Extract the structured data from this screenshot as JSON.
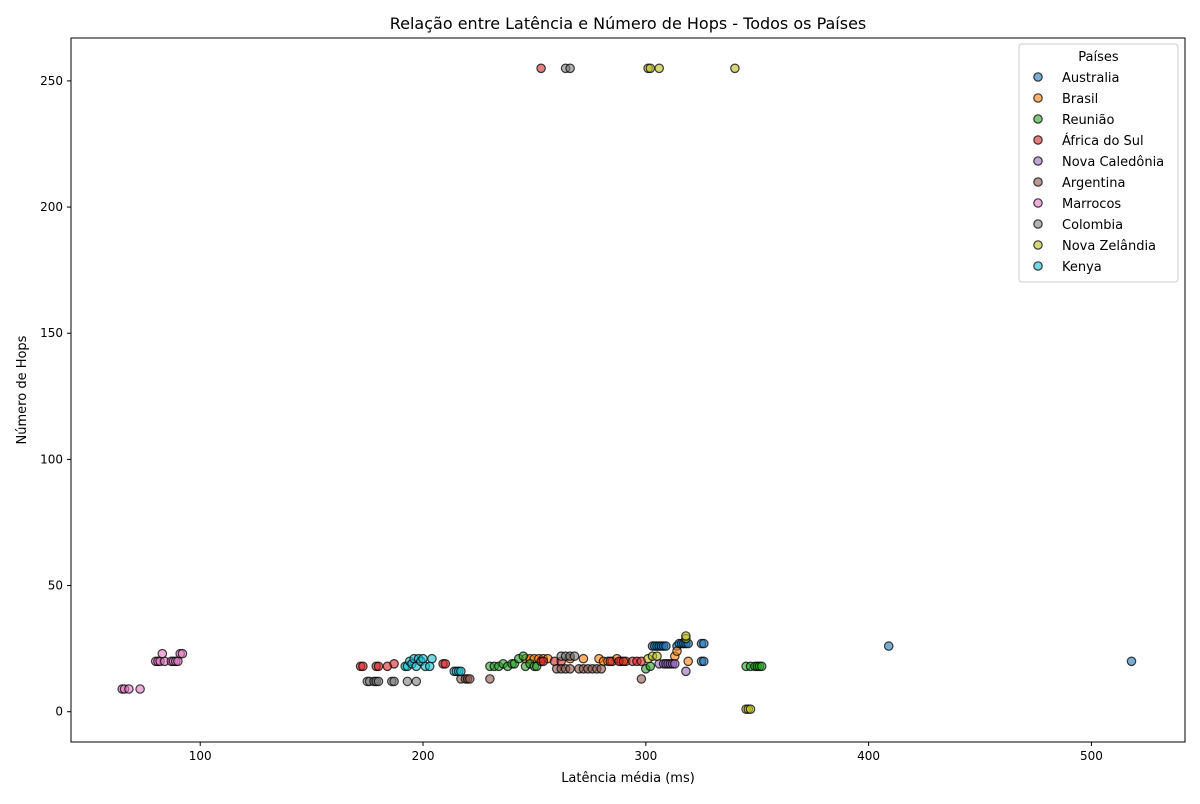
{
  "chart_data": {
    "type": "scatter",
    "title": "Relação entre Latência e Número de Hops - Todos os Países",
    "xlabel": "Latência média (ms)",
    "ylabel": "Número de Hops",
    "xlim": [
      42,
      542
    ],
    "ylim": [
      -12,
      267
    ],
    "xticks": [
      100,
      200,
      300,
      400,
      500
    ],
    "yticks": [
      0,
      50,
      100,
      150,
      200,
      250
    ],
    "grid": false,
    "legend": {
      "title": "Países",
      "position": "top-right"
    },
    "series": [
      {
        "name": "Australia",
        "color": "#1f77b4",
        "points": [
          [
            303,
            26
          ],
          [
            304,
            26
          ],
          [
            305,
            26
          ],
          [
            306,
            26
          ],
          [
            307,
            26
          ],
          [
            308,
            26
          ],
          [
            309,
            26
          ],
          [
            314,
            26
          ],
          [
            315,
            27
          ],
          [
            316,
            27
          ],
          [
            317,
            27
          ],
          [
            318,
            27
          ],
          [
            319,
            27
          ],
          [
            325,
            27
          ],
          [
            326,
            27
          ],
          [
            325,
            20
          ],
          [
            326,
            20
          ],
          [
            409,
            26
          ],
          [
            518,
            20
          ]
        ]
      },
      {
        "name": "Brasil",
        "color": "#ff7f0e",
        "points": [
          [
            246,
            21
          ],
          [
            248,
            21
          ],
          [
            250,
            21
          ],
          [
            252,
            21
          ],
          [
            254,
            21
          ],
          [
            256,
            21
          ],
          [
            266,
            21
          ],
          [
            272,
            21
          ],
          [
            279,
            21
          ],
          [
            281,
            20
          ],
          [
            283,
            20
          ],
          [
            285,
            20
          ],
          [
            287,
            21
          ],
          [
            289,
            20
          ],
          [
            291,
            20
          ],
          [
            313,
            22
          ],
          [
            314,
            24
          ],
          [
            319,
            20
          ]
        ]
      },
      {
        "name": "Reunião",
        "color": "#2ca02c",
        "points": [
          [
            230,
            18
          ],
          [
            232,
            18
          ],
          [
            234,
            18
          ],
          [
            236,
            19
          ],
          [
            238,
            18
          ],
          [
            240,
            19
          ],
          [
            241,
            19
          ],
          [
            243,
            21
          ],
          [
            245,
            22
          ],
          [
            246,
            18
          ],
          [
            248,
            19
          ],
          [
            250,
            18
          ],
          [
            251,
            18
          ],
          [
            300,
            17
          ],
          [
            302,
            18
          ],
          [
            345,
            18
          ],
          [
            347,
            18
          ],
          [
            349,
            18
          ],
          [
            350,
            18
          ],
          [
            351,
            18
          ],
          [
            352,
            18
          ]
        ]
      },
      {
        "name": "África do Sul",
        "color": "#d62728",
        "points": [
          [
            172,
            18
          ],
          [
            173,
            18
          ],
          [
            179,
            18
          ],
          [
            180,
            18
          ],
          [
            184,
            18
          ],
          [
            187,
            19
          ],
          [
            209,
            19
          ],
          [
            210,
            19
          ],
          [
            253,
            20
          ],
          [
            254,
            20
          ],
          [
            259,
            20
          ],
          [
            262,
            20
          ],
          [
            284,
            20
          ],
          [
            288,
            20
          ],
          [
            290,
            20
          ],
          [
            294,
            20
          ],
          [
            296,
            20
          ],
          [
            298,
            20
          ],
          [
            253,
            255
          ]
        ]
      },
      {
        "name": "Nova Caledônia",
        "color": "#9467bd",
        "points": [
          [
            306,
            19
          ],
          [
            308,
            19
          ],
          [
            309,
            19
          ],
          [
            310,
            19
          ],
          [
            311,
            19
          ],
          [
            312,
            19
          ],
          [
            313,
            19
          ],
          [
            318,
            16
          ]
        ]
      },
      {
        "name": "Argentina",
        "color": "#8c564b",
        "points": [
          [
            217,
            13
          ],
          [
            219,
            13
          ],
          [
            220,
            13
          ],
          [
            221,
            13
          ],
          [
            230,
            13
          ],
          [
            260,
            17
          ],
          [
            262,
            17
          ],
          [
            264,
            17
          ],
          [
            266,
            17
          ],
          [
            270,
            17
          ],
          [
            272,
            17
          ],
          [
            274,
            17
          ],
          [
            276,
            17
          ],
          [
            278,
            17
          ],
          [
            280,
            17
          ],
          [
            298,
            13
          ]
        ]
      },
      {
        "name": "Marrocos",
        "color": "#e377c2",
        "points": [
          [
            65,
            9
          ],
          [
            66,
            9
          ],
          [
            68,
            9
          ],
          [
            73,
            9
          ],
          [
            80,
            20
          ],
          [
            81,
            20
          ],
          [
            82,
            20
          ],
          [
            84,
            20
          ],
          [
            83,
            23
          ],
          [
            87,
            20
          ],
          [
            88,
            20
          ],
          [
            89,
            20
          ],
          [
            90,
            20
          ],
          [
            91,
            23
          ],
          [
            92,
            23
          ]
        ]
      },
      {
        "name": "Colombia",
        "color": "#7f7f7f",
        "points": [
          [
            175,
            12
          ],
          [
            176,
            12
          ],
          [
            178,
            12
          ],
          [
            179,
            12
          ],
          [
            180,
            12
          ],
          [
            186,
            12
          ],
          [
            187,
            12
          ],
          [
            193,
            12
          ],
          [
            197,
            12
          ],
          [
            262,
            22
          ],
          [
            264,
            22
          ],
          [
            266,
            22
          ],
          [
            268,
            22
          ],
          [
            264,
            255
          ],
          [
            266,
            255
          ]
        ]
      },
      {
        "name": "Nova Zelândia",
        "color": "#bcbd22",
        "points": [
          [
            301,
            21
          ],
          [
            303,
            22
          ],
          [
            305,
            22
          ],
          [
            301,
            255
          ],
          [
            302,
            255
          ],
          [
            306,
            255
          ],
          [
            340,
            255
          ],
          [
            318,
            29
          ],
          [
            318,
            30
          ],
          [
            345,
            1
          ],
          [
            346,
            1
          ],
          [
            347,
            1
          ]
        ]
      },
      {
        "name": "Kenya",
        "color": "#17becf",
        "points": [
          [
            192,
            18
          ],
          [
            193,
            18
          ],
          [
            194,
            20
          ],
          [
            195,
            19
          ],
          [
            196,
            21
          ],
          [
            197,
            18
          ],
          [
            198,
            21
          ],
          [
            199,
            20
          ],
          [
            200,
            21
          ],
          [
            201,
            18
          ],
          [
            203,
            18
          ],
          [
            204,
            21
          ],
          [
            214,
            16
          ],
          [
            215,
            16
          ],
          [
            216,
            16
          ],
          [
            217,
            16
          ]
        ]
      }
    ]
  }
}
